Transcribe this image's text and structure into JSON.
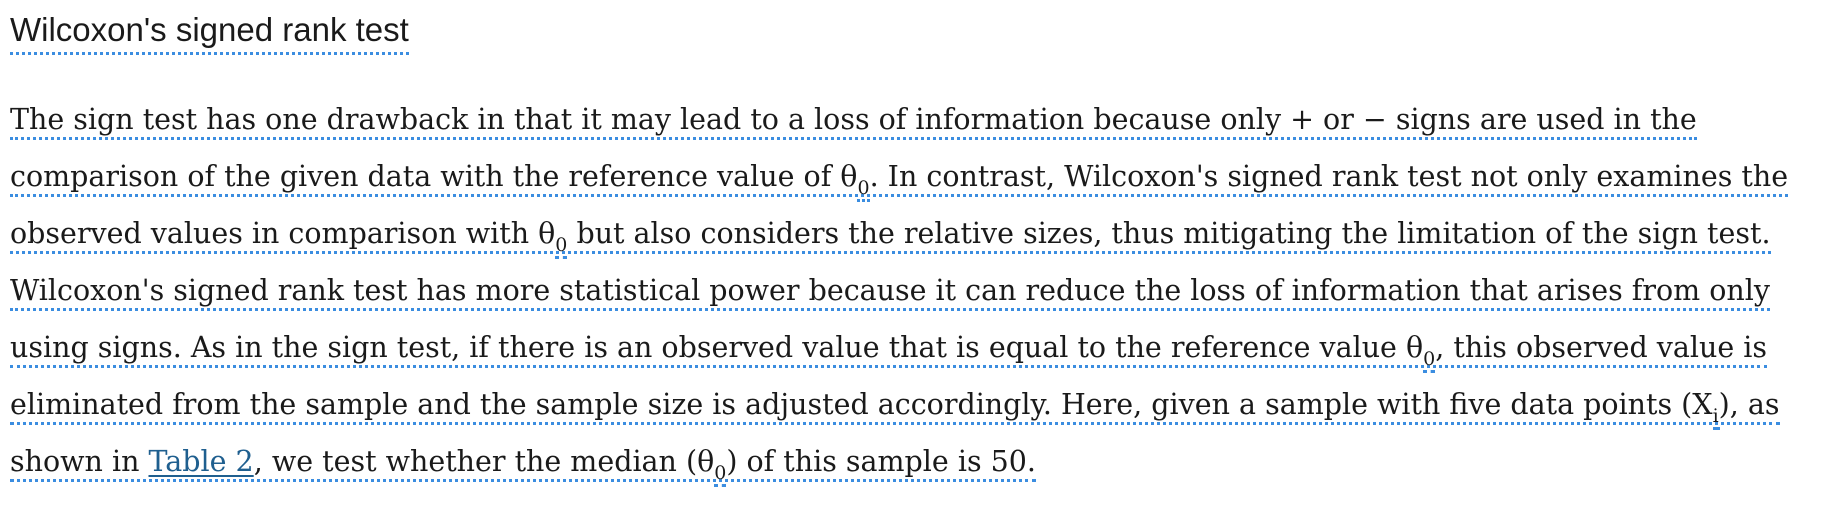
{
  "title": "Wilcoxon's signed rank test",
  "lines": {
    "l1": {
      "text": "The sign test has one drawback in that it may lead to a loss of information because only + or − signs are used in the"
    },
    "l2": {
      "a": "comparison of the given data with the reference value of θ",
      "sub": "0",
      "b": ". In contrast, Wilcoxon's signed rank test not only examines the"
    },
    "l3": {
      "a": "observed values in comparison with θ",
      "sub": "0",
      "b": " but also considers the relative sizes, thus mitigating the limitation of the sign test."
    },
    "l4": {
      "text": "Wilcoxon's signed rank test has more statistical power because it can reduce the loss of information that arises from only"
    },
    "l5": {
      "a": "using signs. As in the sign test, if there is an observed value that is equal to the reference value θ",
      "sub": "0",
      "b": ", this observed value is"
    },
    "l6": {
      "a": "eliminated from the sample and the sample size is adjusted accordingly. Here, given a sample with five data points (X",
      "sub": "i",
      "b": "), as"
    },
    "l7": {
      "a": "shown in ",
      "link": "Table 2",
      "b": ", we test whether the median (θ",
      "sub": "0",
      "c": ") of this sample is 50."
    }
  }
}
